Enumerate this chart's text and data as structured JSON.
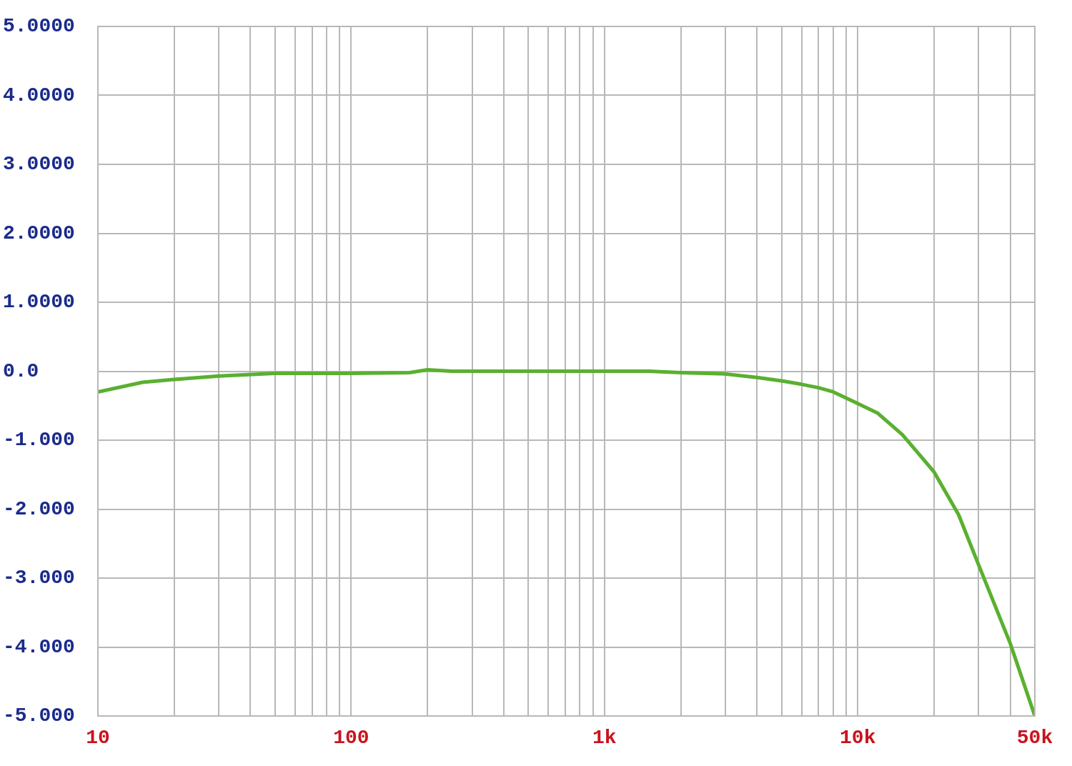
{
  "chart_data": {
    "type": "line",
    "log": "x",
    "grid": true,
    "legend": false,
    "x": [
      10,
      15,
      20,
      30,
      50,
      100,
      170,
      200,
      250,
      500,
      1000,
      1500,
      2000,
      3000,
      4000,
      5000,
      6000,
      7000,
      8000,
      10000,
      12000,
      15000,
      20000,
      25000,
      30000,
      40000,
      50000
    ],
    "series": [
      {
        "color": "#5ab030",
        "values": [
          -0.3,
          -0.16,
          -0.12,
          -0.07,
          -0.03,
          -0.03,
          -0.02,
          0.02,
          0.0,
          0.0,
          0.0,
          0.0,
          -0.02,
          -0.04,
          -0.09,
          -0.14,
          -0.19,
          -0.24,
          -0.3,
          -0.47,
          -0.61,
          -0.92,
          -1.46,
          -2.08,
          -2.81,
          -3.95,
          -5.0
        ]
      }
    ],
    "xlim": [
      10,
      50000
    ],
    "xticks": [
      {
        "value": 10,
        "label": "10"
      },
      {
        "value": 20,
        "label": null
      },
      {
        "value": 30,
        "label": null
      },
      {
        "value": 40,
        "label": null
      },
      {
        "value": 50,
        "label": null
      },
      {
        "value": 60,
        "label": null
      },
      {
        "value": 70,
        "label": null
      },
      {
        "value": 80,
        "label": null
      },
      {
        "value": 90,
        "label": null
      },
      {
        "value": 100,
        "label": "100"
      },
      {
        "value": 200,
        "label": null
      },
      {
        "value": 300,
        "label": null
      },
      {
        "value": 400,
        "label": null
      },
      {
        "value": 500,
        "label": null
      },
      {
        "value": 600,
        "label": null
      },
      {
        "value": 700,
        "label": null
      },
      {
        "value": 800,
        "label": null
      },
      {
        "value": 900,
        "label": null
      },
      {
        "value": 1000,
        "label": "1k"
      },
      {
        "value": 2000,
        "label": null
      },
      {
        "value": 3000,
        "label": null
      },
      {
        "value": 4000,
        "label": null
      },
      {
        "value": 5000,
        "label": null
      },
      {
        "value": 6000,
        "label": null
      },
      {
        "value": 7000,
        "label": null
      },
      {
        "value": 8000,
        "label": null
      },
      {
        "value": 9000,
        "label": null
      },
      {
        "value": 10000,
        "label": "10k"
      },
      {
        "value": 20000,
        "label": null
      },
      {
        "value": 30000,
        "label": null
      },
      {
        "value": 40000,
        "label": null
      },
      {
        "value": 50000,
        "label": "50k"
      }
    ],
    "ylim": [
      -5,
      5
    ],
    "yticks": [
      {
        "value": 5,
        "label": "5.0000"
      },
      {
        "value": 4,
        "label": "4.0000"
      },
      {
        "value": 3,
        "label": "3.0000"
      },
      {
        "value": 2,
        "label": "2.0000"
      },
      {
        "value": 1,
        "label": "1.0000"
      },
      {
        "value": 0,
        "label": "0.0"
      },
      {
        "value": -1,
        "label": "-1.000"
      },
      {
        "value": -2,
        "label": "-2.000"
      },
      {
        "value": -3,
        "label": "-3.000"
      },
      {
        "value": -4,
        "label": "-4.000"
      },
      {
        "value": -5,
        "label": "-5.000"
      }
    ]
  }
}
